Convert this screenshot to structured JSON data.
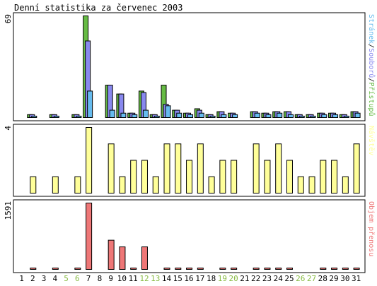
{
  "title": "Denní statistika za červenec 2003",
  "colors": {
    "pristupu": "#66bb44",
    "souboru": "#8888ee",
    "stranek": "#66bbee",
    "navstev": "#ffff99",
    "objem": "#ee7777",
    "weekend_tick": "#88bb44",
    "weekday_tick": "#000000"
  },
  "chart_data": [
    {
      "type": "bar",
      "panel": "hits",
      "ymax_label": "69",
      "ylim": [
        0,
        69
      ],
      "x": [
        1,
        2,
        3,
        4,
        5,
        6,
        7,
        8,
        9,
        10,
        11,
        12,
        13,
        14,
        15,
        16,
        17,
        18,
        19,
        20,
        21,
        22,
        23,
        24,
        25,
        26,
        27,
        28,
        29,
        30,
        31
      ],
      "legend": [
        {
          "name": "Stránek",
          "color_key": "stranek"
        },
        {
          "name": "Souborů",
          "color_key": "souboru"
        },
        {
          "name": "Přístupů",
          "color_key": "pristupu"
        }
      ],
      "series": [
        {
          "name": "Přístupů",
          "color_key": "pristupu",
          "values": [
            0,
            2,
            0,
            2,
            0,
            2,
            69,
            0,
            22,
            16,
            3,
            18,
            2,
            22,
            5,
            3,
            6,
            2,
            4,
            3,
            0,
            4,
            3,
            4,
            4,
            2,
            2,
            3,
            3,
            2,
            4
          ]
        },
        {
          "name": "Souborů",
          "color_key": "souboru",
          "values": [
            0,
            2,
            0,
            2,
            0,
            2,
            52,
            0,
            22,
            16,
            3,
            17,
            2,
            9,
            5,
            3,
            5,
            2,
            4,
            3,
            0,
            4,
            3,
            4,
            4,
            2,
            2,
            3,
            3,
            2,
            4
          ]
        },
        {
          "name": "Stránek",
          "color_key": "stranek",
          "values": [
            0,
            1,
            0,
            1,
            0,
            1,
            18,
            0,
            5,
            3,
            2,
            5,
            1,
            8,
            3,
            2,
            3,
            1,
            2,
            2,
            0,
            3,
            2,
            3,
            2,
            1,
            1,
            2,
            2,
            1,
            3
          ]
        }
      ]
    },
    {
      "type": "bar",
      "panel": "visits",
      "ymax_label": "4",
      "ylim": [
        0,
        4
      ],
      "x": [
        1,
        2,
        3,
        4,
        5,
        6,
        7,
        8,
        9,
        10,
        11,
        12,
        13,
        14,
        15,
        16,
        17,
        18,
        19,
        20,
        21,
        22,
        23,
        24,
        25,
        26,
        27,
        28,
        29,
        30,
        31
      ],
      "legend": [
        {
          "name": "Návštěv",
          "color_key": "navstev"
        }
      ],
      "series": [
        {
          "name": "Návštěv",
          "color_key": "navstev",
          "values": [
            0,
            1,
            0,
            1,
            0,
            1,
            4,
            0,
            3,
            1,
            2,
            2,
            1,
            3,
            3,
            2,
            3,
            1,
            2,
            2,
            0,
            3,
            2,
            3,
            2,
            1,
            1,
            2,
            2,
            1,
            3
          ]
        }
      ]
    },
    {
      "type": "bar",
      "panel": "volume",
      "ymax_label": "1591",
      "ylim": [
        0,
        1591
      ],
      "x": [
        1,
        2,
        3,
        4,
        5,
        6,
        7,
        8,
        9,
        10,
        11,
        12,
        13,
        14,
        15,
        16,
        17,
        18,
        19,
        20,
        21,
        22,
        23,
        24,
        25,
        26,
        27,
        28,
        29,
        30,
        31
      ],
      "legend": [
        {
          "name": "Objem přenosu",
          "color_key": "objem"
        }
      ],
      "series": [
        {
          "name": "Objem přenosu",
          "color_key": "objem",
          "values": [
            0,
            6,
            0,
            6,
            0,
            6,
            1591,
            0,
            700,
            540,
            10,
            540,
            0,
            10,
            10,
            10,
            10,
            0,
            10,
            10,
            0,
            10,
            10,
            10,
            10,
            0,
            0,
            10,
            10,
            10,
            10
          ]
        }
      ]
    }
  ],
  "x_tick_labels": [
    "1",
    "2",
    "3",
    "4",
    "5",
    "6",
    "7",
    "8",
    "9",
    "10",
    "11",
    "12",
    "13",
    "14",
    "15",
    "16",
    "17",
    "18",
    "19",
    "20",
    "21",
    "22",
    "23",
    "24",
    "25",
    "26",
    "27",
    "28",
    "29",
    "30",
    "31"
  ],
  "weekend_days": [
    5,
    6,
    12,
    13,
    19,
    20,
    26,
    27
  ]
}
